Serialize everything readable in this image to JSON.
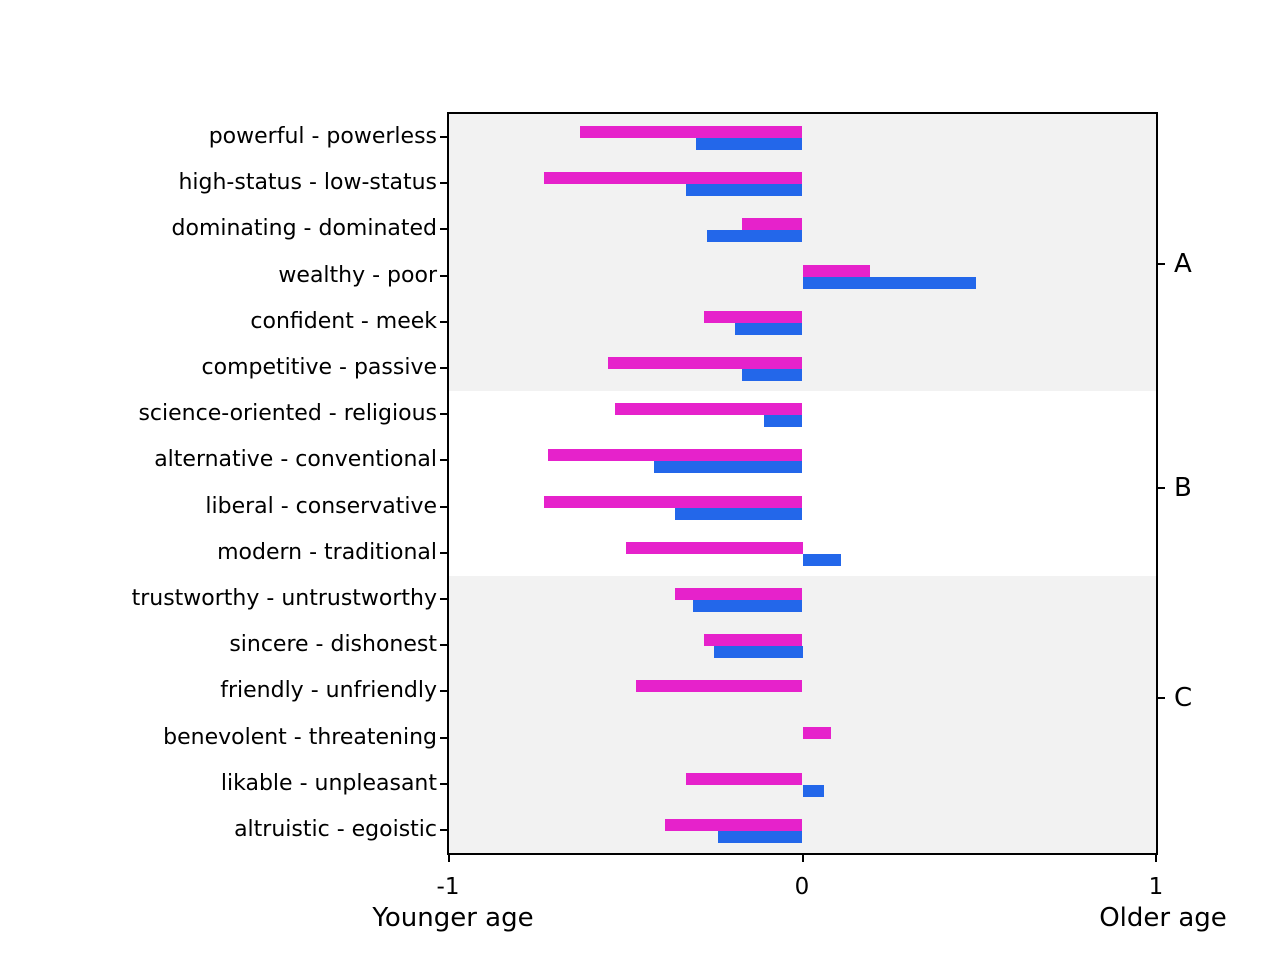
{
  "chart_data": {
    "type": "bar",
    "orientation": "horizontal",
    "title": "",
    "xlabel_left": "Younger age",
    "xlabel_right": "Older age",
    "xlim": [
      -1,
      1
    ],
    "x_ticks": [
      "-1",
      "0",
      "1"
    ],
    "x_tick_values": [
      -1,
      0,
      1
    ],
    "grid": false,
    "legend": "none",
    "band_color": "#f2f2f2",
    "categories": [
      "powerful - powerless",
      "high-status - low-status",
      "dominating - dominated",
      "wealthy - poor",
      "confident - meek",
      "competitive - passive",
      "science-oriented - religious",
      "alternative - conventional",
      "liberal - conservative",
      "modern - traditional",
      "trustworthy - untrustworthy",
      "sincere - dishonest",
      "friendly - unfriendly",
      "benevolent - threatening",
      "likable - unpleasant",
      "altruistic - egoistic"
    ],
    "series": [
      {
        "name": "magenta-series",
        "color": "#e622cb",
        "values": [
          -0.63,
          -0.73,
          -0.17,
          0.19,
          -0.28,
          -0.55,
          -0.53,
          -0.72,
          -0.73,
          -0.5,
          -0.36,
          -0.28,
          -0.47,
          0.08,
          -0.33,
          -0.39
        ]
      },
      {
        "name": "blue-series",
        "color": "#2367ea",
        "values": [
          -0.3,
          -0.33,
          -0.27,
          0.49,
          -0.19,
          -0.17,
          -0.11,
          -0.42,
          -0.36,
          0.11,
          -0.31,
          -0.25,
          0.0,
          0.0,
          0.06,
          -0.24
        ]
      }
    ],
    "groups": [
      {
        "label": "A",
        "start_row": 0,
        "end_row": 6,
        "shaded": true
      },
      {
        "label": "B",
        "start_row": 6,
        "end_row": 10,
        "shaded": false
      },
      {
        "label": "C",
        "start_row": 10,
        "end_row": 16,
        "shaded": true
      }
    ]
  }
}
